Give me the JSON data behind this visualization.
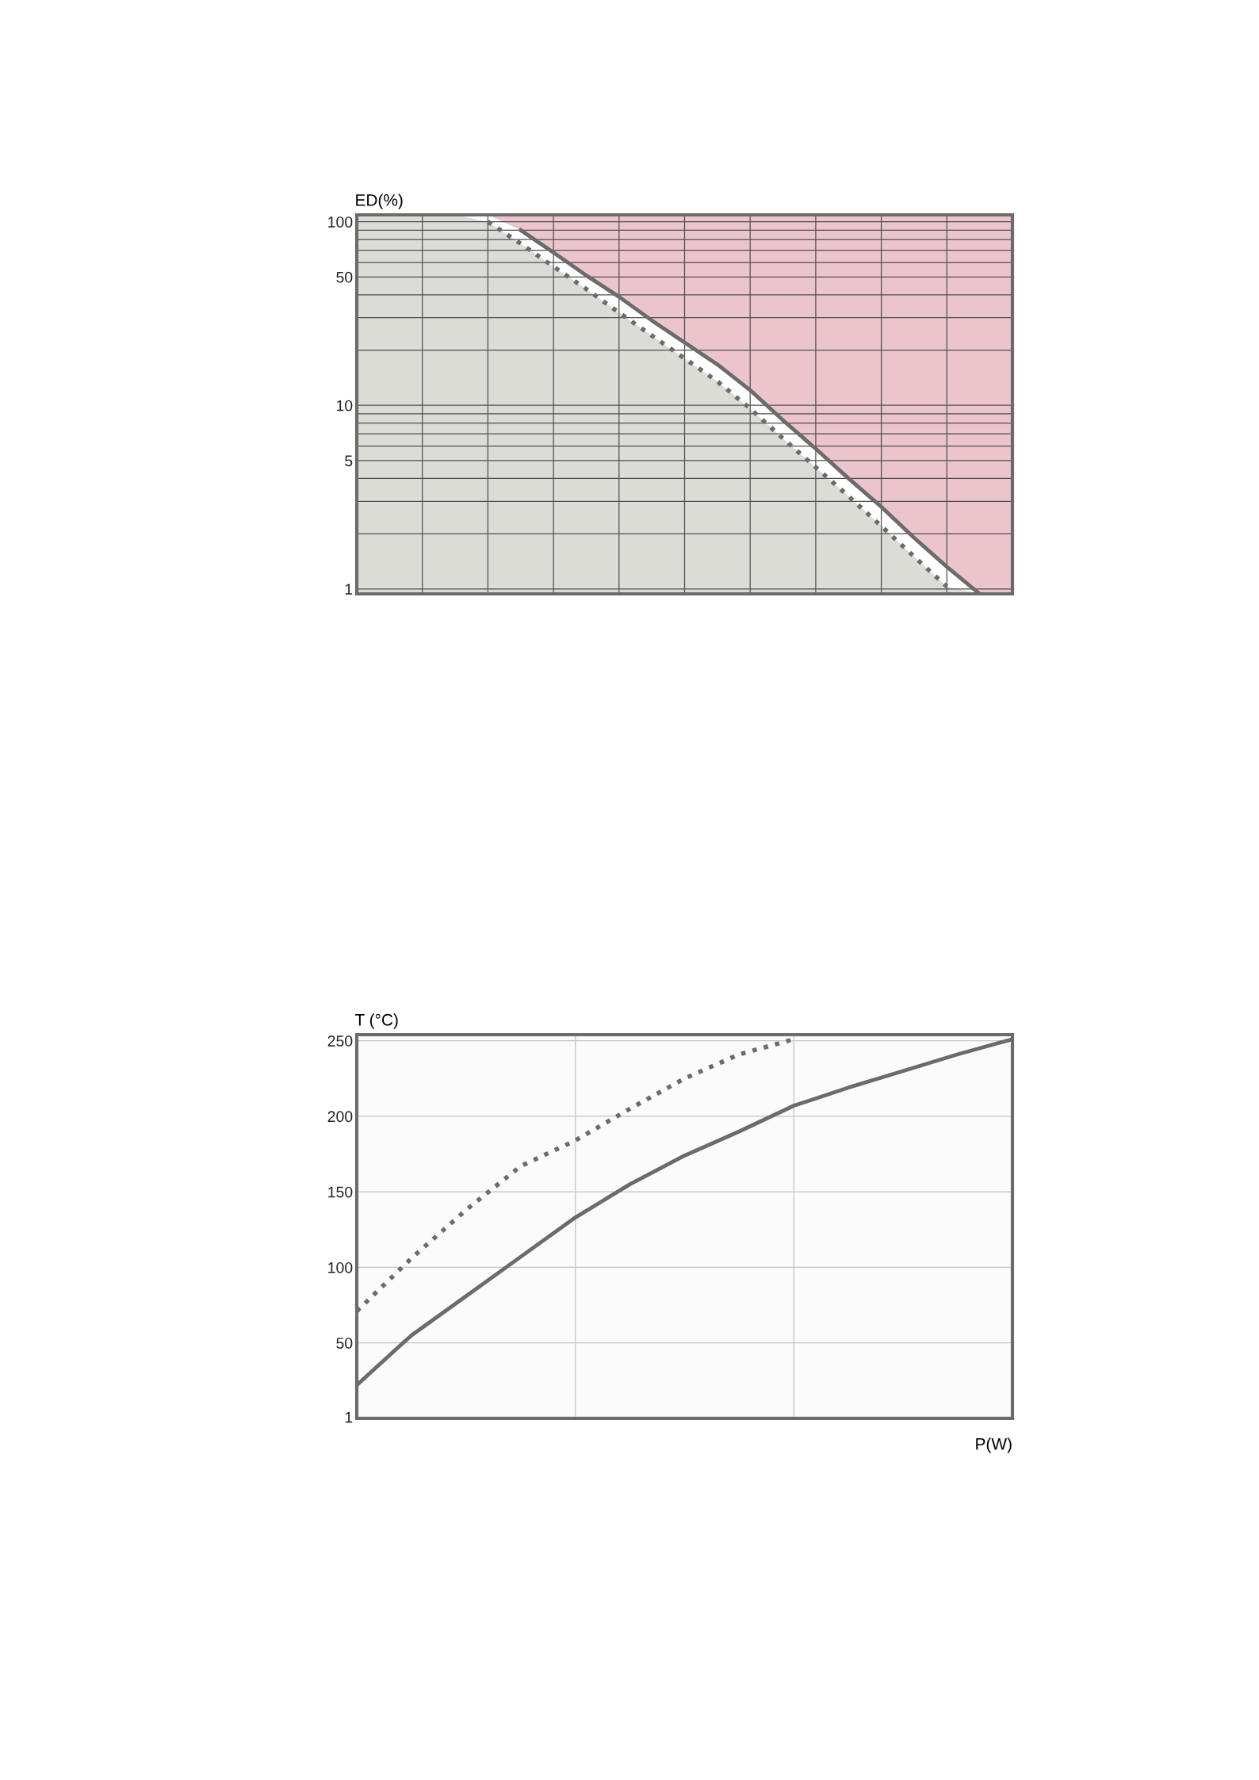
{
  "chart_data": [
    {
      "type": "line",
      "ylabel": "ED(%)",
      "log": "y",
      "grid": true,
      "categories": [
        null,
        null,
        null,
        null,
        null,
        null,
        null,
        null,
        null,
        null,
        null,
        null,
        null,
        null,
        null,
        null,
        null,
        null,
        null,
        null,
        null
      ],
      "ylim": [
        0.94,
        109
      ],
      "yticks": [
        1,
        {
          "value": 2,
          "label": null
        },
        {
          "value": 3,
          "label": null
        },
        {
          "value": 4,
          "label": null
        },
        5,
        {
          "value": 6,
          "label": null
        },
        {
          "value": 7,
          "label": null
        },
        {
          "value": 8,
          "label": null
        },
        {
          "value": 9,
          "label": null
        },
        10,
        {
          "value": 20,
          "label": null
        },
        {
          "value": 30,
          "label": null
        },
        {
          "value": 40,
          "label": null
        },
        50,
        {
          "value": 60,
          "label": null
        },
        {
          "value": 70,
          "label": null
        },
        {
          "value": 80,
          "label": null
        },
        {
          "value": 90,
          "label": null
        },
        100
      ],
      "bands": [
        {
          "axis": "y",
          "from": 0.94,
          "to": 109,
          "color": "#ebc5cb"
        }
      ],
      "series": [
        {
          "line_style": "dotted",
          "color": "#6b6b6b",
          "values": [
            null,
            null,
            null,
            null,
            100,
            76,
            57,
            43,
            32,
            24,
            18,
            13.5,
            9.6,
            6.6,
            4.6,
            3.2,
            2.2,
            1.5,
            1.03,
            null,
            null
          ]
        },
        {
          "line_style": "solid",
          "color": "#6b6b6b",
          "values": [
            null,
            null,
            null,
            null,
            null,
            90,
            68,
            51,
            39,
            29,
            22,
            16.7,
            12.1,
            8.3,
            5.8,
            4.0,
            2.8,
            1.9,
            1.32,
            0.94,
            null
          ]
        }
      ]
    },
    {
      "type": "line",
      "ylabel": "T (°C)",
      "xlabel": "P(W)",
      "grid": true,
      "categories": [
        null,
        null,
        null,
        null,
        null,
        null,
        null,
        null,
        null,
        null,
        null,
        null,
        null
      ],
      "ylim": [
        0,
        254
      ],
      "yticks": [
        1,
        50,
        100,
        150,
        200,
        250
      ],
      "series": [
        {
          "line_style": "dotted",
          "color": "#6b6b6b",
          "values": [
            71,
            106,
            138,
            167,
            184,
            205,
            225,
            241,
            251,
            null,
            null,
            null,
            null
          ]
        },
        {
          "line_style": "solid",
          "color": "#6b6b6b",
          "values": [
            22,
            55,
            81,
            107,
            133,
            155,
            174,
            190,
            207,
            219,
            230,
            241,
            251
          ]
        }
      ]
    }
  ]
}
